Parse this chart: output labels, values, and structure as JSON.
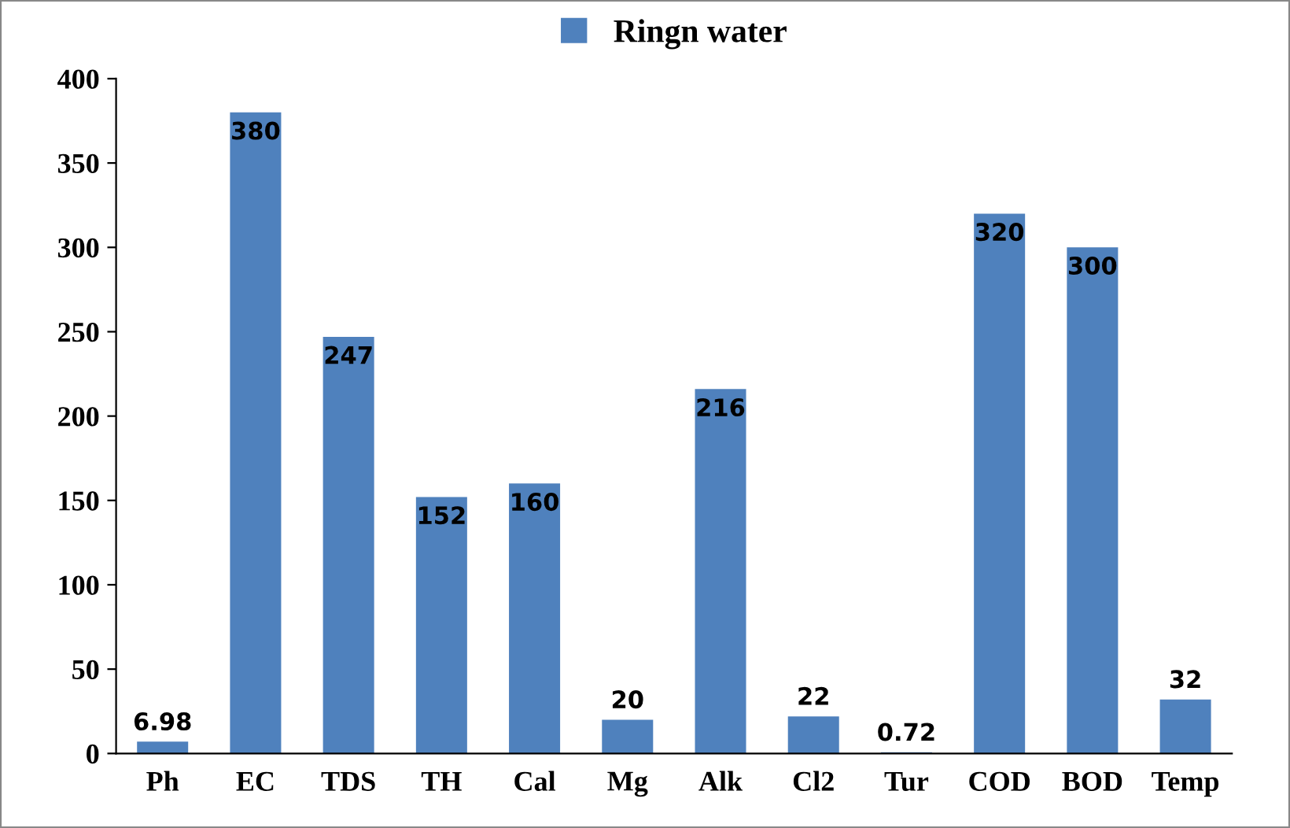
{
  "chart_data": {
    "type": "bar",
    "categories": [
      "Ph",
      "EC",
      "TDS",
      "TH",
      "Cal",
      "Mg",
      "Alk",
      "Cl2",
      "Tur",
      "COD",
      "BOD",
      "Temp"
    ],
    "series": [
      {
        "name": "Ringn water",
        "color": "#4f81bd",
        "values": [
          6.98,
          380,
          247,
          152,
          160,
          20,
          216,
          22,
          0.72,
          320,
          300,
          32
        ]
      }
    ],
    "ylim": [
      0,
      400
    ],
    "yticks": [
      0,
      50,
      100,
      150,
      200,
      250,
      300,
      350,
      400
    ],
    "data_labels": true,
    "legend": "top",
    "grid": false
  }
}
